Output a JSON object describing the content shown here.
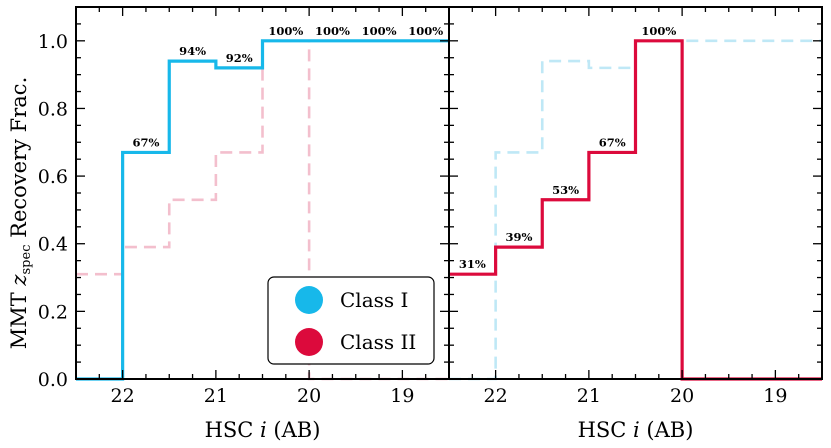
{
  "colors": {
    "class1": "#17b8ea",
    "class1_faint": "#bfe8f6",
    "class2": "#dc0a3c",
    "class2_faint": "#f3bfcd"
  },
  "chart_data": [
    {
      "type": "line",
      "panel": "left",
      "style": "step",
      "xlabel": "HSC i (AB)",
      "ylabel": "MMT z_spec Recovery Frac.",
      "xlim": [
        22.5,
        18.5
      ],
      "ylim": [
        0.0,
        1.1
      ],
      "xticks": [
        "22",
        "21",
        "20",
        "19"
      ],
      "yticks": [
        "0.0",
        "0.2",
        "0.4",
        "0.6",
        "0.8",
        "1.0"
      ],
      "bin_edges": [
        22.5,
        22.0,
        21.5,
        21.0,
        20.5,
        20.0,
        19.5,
        19.0,
        18.5
      ],
      "series": [
        {
          "name": "Class I",
          "style": "solid",
          "values": [
            0.0,
            0.67,
            0.94,
            0.92,
            1.0,
            1.0,
            1.0,
            1.0
          ]
        },
        {
          "name": "Class II",
          "style": "dashed-faint",
          "values": [
            0.31,
            0.39,
            0.53,
            0.67,
            1.0,
            0.0,
            0.0,
            0.0
          ]
        }
      ],
      "data_labels": [
        {
          "x": 21.75,
          "y": 0.67,
          "text": "67%"
        },
        {
          "x": 21.25,
          "y": 0.94,
          "text": "94%"
        },
        {
          "x": 20.75,
          "y": 0.92,
          "text": "92%"
        },
        {
          "x": 20.25,
          "y": 1.0,
          "text": "100%"
        },
        {
          "x": 19.75,
          "y": 1.0,
          "text": "100%"
        },
        {
          "x": 19.25,
          "y": 1.0,
          "text": "100%"
        },
        {
          "x": 18.75,
          "y": 1.0,
          "text": "100%"
        }
      ],
      "legend": {
        "position": "bottom-right",
        "entries": [
          "Class I",
          "Class II"
        ]
      }
    },
    {
      "type": "line",
      "panel": "right",
      "style": "step",
      "xlabel": "HSC i (AB)",
      "xlim": [
        22.5,
        18.5
      ],
      "ylim": [
        0.0,
        1.1
      ],
      "xticks": [
        "22",
        "21",
        "20",
        "19"
      ],
      "bin_edges": [
        22.5,
        22.0,
        21.5,
        21.0,
        20.5,
        20.0,
        19.5,
        19.0,
        18.5
      ],
      "series": [
        {
          "name": "Class II",
          "style": "solid",
          "values": [
            0.31,
            0.39,
            0.53,
            0.67,
            1.0,
            0.0,
            0.0,
            0.0
          ]
        },
        {
          "name": "Class I",
          "style": "dashed-faint",
          "values": [
            0.0,
            0.67,
            0.94,
            0.92,
            1.0,
            1.0,
            1.0,
            1.0
          ]
        }
      ],
      "data_labels": [
        {
          "x": 22.25,
          "y": 0.31,
          "text": "31%"
        },
        {
          "x": 21.75,
          "y": 0.39,
          "text": "39%"
        },
        {
          "x": 21.25,
          "y": 0.53,
          "text": "53%"
        },
        {
          "x": 20.75,
          "y": 0.67,
          "text": "67%"
        },
        {
          "x": 20.25,
          "y": 1.0,
          "text": "100%"
        }
      ]
    }
  ]
}
